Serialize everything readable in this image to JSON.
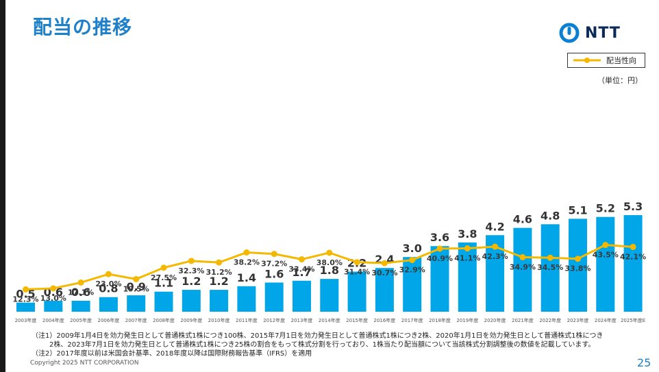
{
  "slide": {
    "title": "配当の推移",
    "logo_text": "NTT",
    "unit": "（単位：円）",
    "notes": [
      "（注1）2009年1月4日を効力発生日として普通株式1株につき100株、2015年7月1日を効力発生日として普通株式1株につき2株、2020年1月1日を効力発生日として普通株式1株につき",
      "2株、2023年7月1日を効力発生日として普通株式1株につき25株の割合をもって株式分割を行っており、1株当たり配当額について当該株式分割調整後の数値を記載しています。",
      "（注2）2017年度以前は米国会計基準、2018年度以降は国際財務報告基準（IFRS）を適用"
    ],
    "copyright": "Copyright 2025 NTT CORPORATION",
    "page_number": "25"
  },
  "colors": {
    "bar": "#00a6e8",
    "line": "#f5b800",
    "title": "#1e80c8"
  },
  "chart_data": {
    "type": "bar",
    "categories": [
      "2003年度",
      "2004年度",
      "2005年度",
      "2006年度",
      "2007年度",
      "2008年度",
      "2009年度",
      "2010年度",
      "2011年度",
      "2012年度",
      "2013年度",
      "2014年度",
      "2015年度",
      "2016年度",
      "2017年度",
      "2018年度",
      "2019年度",
      "2020年度",
      "2021年度",
      "2022年度",
      "2023年度",
      "2024年度",
      "2025年度E"
    ],
    "series": [
      {
        "values": [
          0.5,
          0.6,
          0.6,
          0.8,
          0.9,
          1.1,
          1.2,
          1.2,
          1.4,
          1.6,
          1.7,
          1.8,
          2.2,
          2.4,
          3.0,
          3.6,
          3.8,
          4.2,
          4.6,
          4.8,
          5.1,
          5.2,
          5.3
        ],
        "labels": [
          "0.5",
          "0.6",
          "0.6",
          "0.8",
          "0.9",
          "1.1",
          "1.2",
          "1.2",
          "1.4",
          "1.6",
          "1.7",
          "1.8",
          "2.2",
          "2.4",
          "3.0",
          "3.6",
          "3.8",
          "4.2",
          "4.6",
          "4.8",
          "5.1",
          "5.2",
          "5.3"
        ]
      },
      {
        "name": "配当性向",
        "type": "line",
        "values": [
          12.3,
          13.0,
          17.1,
          23.0,
          19.5,
          27.5,
          32.3,
          31.2,
          38.2,
          37.2,
          33.4,
          38.0,
          31.4,
          30.7,
          32.9,
          40.9,
          41.1,
          42.3,
          34.9,
          34.5,
          33.8,
          43.5,
          42.1
        ],
        "labels": [
          "12.3%",
          "13.0%",
          "17.1%",
          "23.0%",
          "19.5%",
          "27.5%",
          "32.3%",
          "31.2%",
          "38.2%",
          "37.2%",
          "33.4%",
          "38.0%",
          "31.4%",
          "30.7%",
          "32.9%",
          "40.9%",
          "41.1%",
          "42.3%",
          "34.9%",
          "34.5%",
          "33.8%",
          "43.5%",
          "42.1%"
        ]
      }
    ],
    "ylim": [
      0,
      5.5
    ],
    "legend": "top-right"
  }
}
